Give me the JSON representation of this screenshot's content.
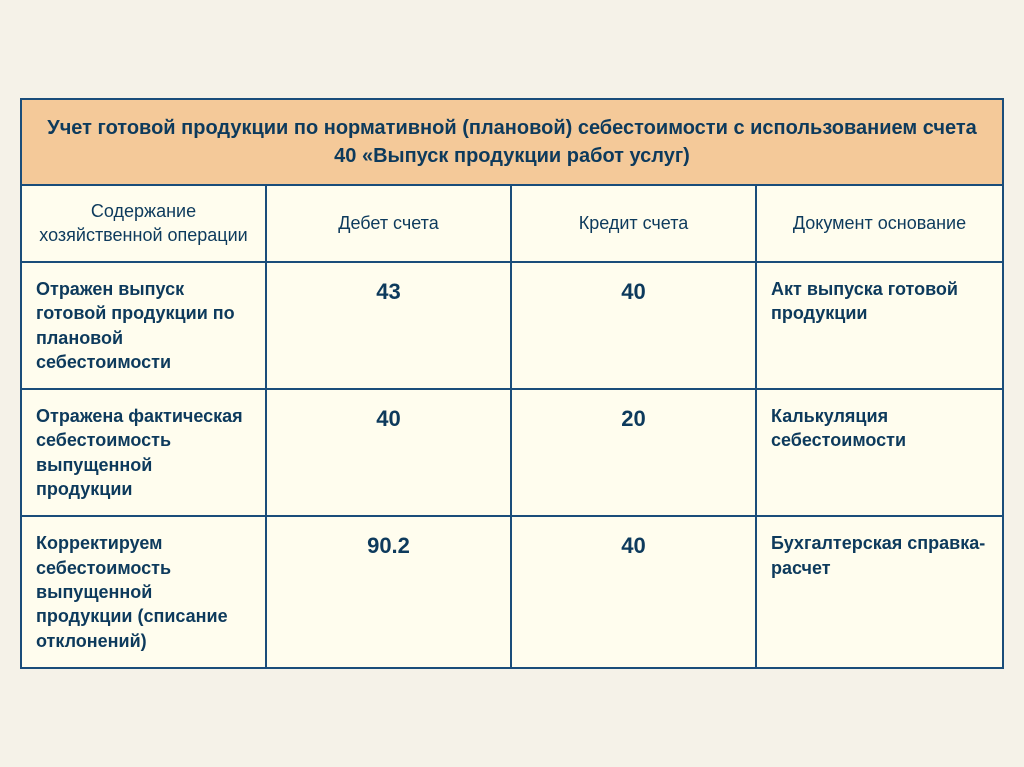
{
  "title": "Учет готовой продукции по нормативной (плановой) себестоимости с использованием счета 40 «Выпуск продукции работ услуг)",
  "styling": {
    "background_color": "#f5f2e8",
    "title_bg_color": "#f4c999",
    "row_bg_color": "#fffdee",
    "border_color": "#1a4d7a",
    "text_color": "#0d3a5c",
    "title_fontsize": 20,
    "header_fontsize": 18,
    "body_fontsize": 18,
    "numeric_fontsize": 22,
    "col_widths_pct": [
      25,
      25,
      25,
      25
    ]
  },
  "columns": [
    "Содержание хозяйственной операции",
    "Дебет счета",
    "Кредит счета",
    "Документ основание"
  ],
  "rows": [
    {
      "operation": "Отражен выпуск готовой продукции по плановой себестоимости",
      "debit": "43",
      "credit": "40",
      "document": "Акт выпуска готовой продукции"
    },
    {
      "operation": "Отражена фактическая себестоимость выпущенной продукции",
      "debit": "40",
      "credit": "20",
      "document": "Калькуляция себестоимости"
    },
    {
      "operation": "Корректируем себестоимость выпущенной продукции (списание отклонений)",
      "debit": "90.2",
      "credit": "40",
      "document": "Бухгалтерская справка-расчет"
    }
  ]
}
